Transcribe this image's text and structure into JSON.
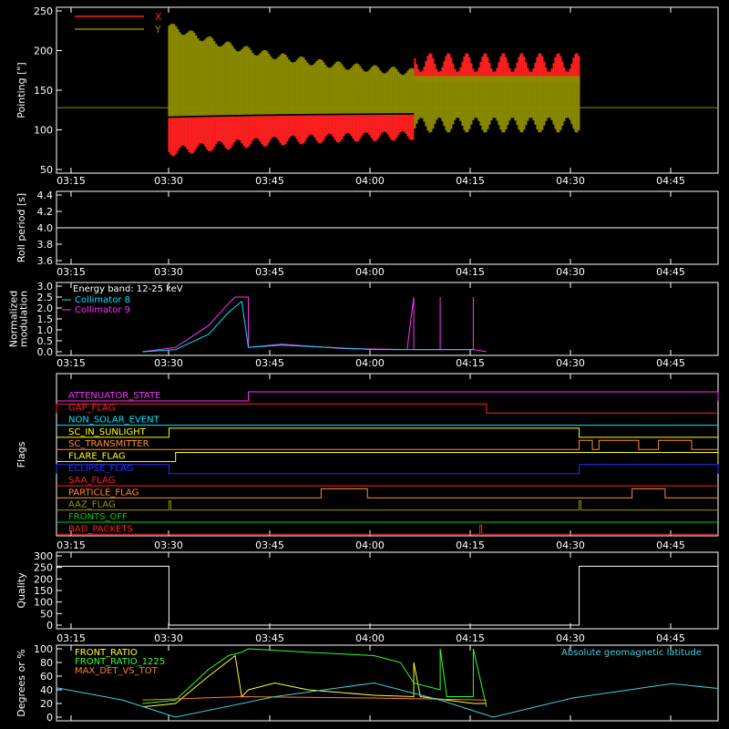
{
  "time_ticks": [
    "03:15",
    "03:30",
    "03:45",
    "04:00",
    "04:15",
    "04:30",
    "04:45"
  ],
  "chart_data": [
    {
      "type": "line",
      "panel": "pointing",
      "ylabel": "Pointing [\"]",
      "ylim": [
        50,
        250
      ],
      "yticks": [
        "50",
        "100",
        "150",
        "200",
        "250"
      ],
      "xlim": [
        "03:12",
        "04:52"
      ],
      "legend": [
        {
          "name": "X",
          "color": "#ff2020"
        },
        {
          "name": "Y",
          "color": "#8b8b00"
        }
      ],
      "series": [
        {
          "name": "X",
          "color": "#ff2020",
          "points": [
            [
              "03:29",
              75
            ],
            [
              "03:30",
              230
            ],
            [
              "03:35",
              105
            ],
            [
              "03:45",
              118
            ],
            [
              "04:00",
              118
            ],
            [
              "04:05",
              190
            ],
            [
              "04:15",
              180
            ],
            [
              "04:25",
              178
            ],
            [
              "04:31",
              175
            ]
          ]
        },
        {
          "name": "Y",
          "color": "#8b8b00",
          "points": [
            [
              "03:29",
              235
            ],
            [
              "03:35",
              200
            ],
            [
              "03:45",
              188
            ],
            [
              "04:00",
              170
            ],
            [
              "04:05",
              100
            ],
            [
              "04:15",
              110
            ],
            [
              "04:31",
              120
            ]
          ]
        }
      ],
      "baseline": 128,
      "band": {
        "x_start": "03:29",
        "x_change": "04:06",
        "x_end": "04:31"
      }
    },
    {
      "type": "line",
      "panel": "roll-period",
      "ylabel": "Roll period [s]",
      "ylim": [
        3.5,
        4.5
      ],
      "yticks": [
        "3.6",
        "3.8",
        "4.0",
        "4.2",
        "4.4"
      ],
      "series": [
        {
          "name": "",
          "color": "#ffffff",
          "points": [
            [
              "03:12",
              4.0
            ],
            [
              "04:52",
              4.0
            ]
          ]
        }
      ]
    },
    {
      "type": "line",
      "panel": "modulation",
      "ylabel": [
        "Normalized",
        "modulation"
      ],
      "ylim": [
        0,
        3.0
      ],
      "yticks": [
        "0.0",
        "0.5",
        "1.0",
        "1.5",
        "2.0",
        "2.5",
        "3.0"
      ],
      "annotation": "Energy band: 12-25 keV",
      "legend": [
        {
          "name": "Collimator 8",
          "color": "#00e5ff"
        },
        {
          "name": "Collimator 9",
          "color": "#ff30ff"
        }
      ],
      "series": [
        {
          "name": "Collimator 9",
          "color": "#ff30ff",
          "points": [
            [
              "03:25",
              0.0
            ],
            [
              "03:30",
              0.2
            ],
            [
              "03:35",
              1.2
            ],
            [
              "03:38",
              2.2
            ],
            [
              "03:39",
              2.5
            ],
            [
              "03:41",
              2.5
            ],
            [
              "03:41",
              0.2
            ],
            [
              "03:46",
              0.35
            ],
            [
              "03:55",
              0.15
            ],
            [
              "04:05",
              0.1
            ],
            [
              "04:06",
              2.5
            ],
            [
              "04:06",
              0.1
            ],
            [
              "04:10",
              0.1
            ],
            [
              "04:10",
              2.5
            ],
            [
              "04:10",
              0.1
            ],
            [
              "04:15",
              0.1
            ],
            [
              "04:15",
              2.5
            ],
            [
              "04:15",
              0.1
            ],
            [
              "04:17",
              0.0
            ]
          ]
        },
        {
          "name": "Collimator 8",
          "color": "#00e5ff",
          "points": [
            [
              "03:25",
              0.0
            ],
            [
              "03:30",
              0.1
            ],
            [
              "03:35",
              0.8
            ],
            [
              "03:38",
              1.8
            ],
            [
              "03:40",
              2.3
            ],
            [
              "03:41",
              0.2
            ],
            [
              "03:46",
              0.3
            ],
            [
              "04:00",
              0.1
            ],
            [
              "04:15",
              0.1
            ]
          ]
        }
      ]
    },
    {
      "type": "line",
      "panel": "flags",
      "ylabel": "Flags",
      "flags": [
        {
          "name": "ATTENUATOR_STATE",
          "color": "#ff30ff",
          "on": [
            [
              "03:41",
              "04:52"
            ]
          ]
        },
        {
          "name": "GAP_FLAG",
          "color": "#ff2020",
          "on": [
            [
              "03:12",
              "04:17"
            ]
          ]
        },
        {
          "name": "NON_SOLAR_EVENT",
          "color": "#00e5ff",
          "on": []
        },
        {
          "name": "SC_IN_SUNLIGHT",
          "color": "#ffff00",
          "on": [
            [
              "03:29",
              "04:31"
            ]
          ]
        },
        {
          "name": "SC_TRANSMITTER",
          "color": "#ff9030",
          "on": [
            [
              "04:31",
              "04:33"
            ],
            [
              "04:34",
              "04:40"
            ],
            [
              "04:43",
              "04:48"
            ]
          ]
        },
        {
          "name": "FLARE_FLAG",
          "color": "#ffff00",
          "on": [
            [
              "03:30",
              "04:52"
            ]
          ]
        },
        {
          "name": "ECLIPSE_FLAG",
          "color": "#2030ff",
          "on": [
            [
              "03:12",
              "03:29"
            ],
            [
              "04:31",
              "04:52"
            ]
          ]
        },
        {
          "name": "SAA_FLAG",
          "color": "#ff2020",
          "on": []
        },
        {
          "name": "PARTICLE_FLAG",
          "color": "#ff9030",
          "on": [
            [
              "03:52",
              "03:59"
            ],
            [
              "04:39",
              "04:44"
            ]
          ]
        },
        {
          "name": "AAZ_FLAG",
          "color": "#9a9a00",
          "on": [
            [
              "03:29",
              "03:29"
            ],
            [
              "04:31",
              "04:31"
            ]
          ]
        },
        {
          "name": "FRONTS_OFF",
          "color": "#00d000",
          "on": []
        },
        {
          "name": "BAD_PACKETS",
          "color": "#ff2020",
          "on": [
            [
              "04:16",
              "04:16"
            ]
          ]
        }
      ]
    },
    {
      "type": "line",
      "panel": "quality",
      "ylabel": "Quality",
      "ylim": [
        0,
        300
      ],
      "yticks": [
        "0",
        "50",
        "100",
        "150",
        "200",
        "250",
        "300"
      ],
      "series": [
        {
          "name": "",
          "color": "#ffffff",
          "points": [
            [
              "03:12",
              255
            ],
            [
              "03:29",
              255
            ],
            [
              "03:29",
              0
            ],
            [
              "04:31",
              0
            ],
            [
              "04:31",
              255
            ],
            [
              "04:52",
              255
            ]
          ]
        }
      ]
    },
    {
      "type": "line",
      "panel": "ratios",
      "ylabel": "Degrees or %",
      "ylim": [
        0,
        100
      ],
      "yticks": [
        "0",
        "20",
        "40",
        "60",
        "80",
        "100"
      ],
      "legend": [
        {
          "name": "FRONT_RATIO",
          "color": "#ffff30"
        },
        {
          "name": "FRONT_RATIO_1225",
          "color": "#30ff30"
        },
        {
          "name": "MAX_DET_VS_TOT",
          "color": "#ff8020"
        }
      ],
      "annotation": "Absolute geomagnetic latitude",
      "series": [
        {
          "name": "FRONT_RATIO",
          "color": "#ffff30",
          "points": [
            [
              "03:25",
              15
            ],
            [
              "03:30",
              20
            ],
            [
              "03:35",
              60
            ],
            [
              "03:39",
              90
            ],
            [
              "03:40",
              30
            ],
            [
              "03:41",
              40
            ],
            [
              "03:45",
              50
            ],
            [
              "03:50",
              40
            ],
            [
              "04:00",
              32
            ],
            [
              "04:06",
              30
            ],
            [
              "04:06",
              80
            ],
            [
              "04:07",
              30
            ],
            [
              "04:15",
              20
            ],
            [
              "04:17",
              20
            ]
          ]
        },
        {
          "name": "FRONT_RATIO_1225",
          "color": "#30ff30",
          "points": [
            [
              "03:25",
              20
            ],
            [
              "03:30",
              25
            ],
            [
              "03:35",
              70
            ],
            [
              "03:38",
              90
            ],
            [
              "03:40",
              95
            ],
            [
              "03:41",
              100
            ],
            [
              "03:50",
              95
            ],
            [
              "04:00",
              90
            ],
            [
              "04:04",
              80
            ],
            [
              "04:06",
              50
            ],
            [
              "04:10",
              40
            ],
            [
              "04:10",
              100
            ],
            [
              "04:11",
              30
            ],
            [
              "04:15",
              30
            ],
            [
              "04:15",
              100
            ],
            [
              "04:17",
              15
            ]
          ]
        },
        {
          "name": "MAX_DET_VS_TOT",
          "color": "#ff8020",
          "points": [
            [
              "03:25",
              25
            ],
            [
              "03:40",
              30
            ],
            [
              "04:00",
              28
            ],
            [
              "04:17",
              25
            ]
          ]
        },
        {
          "name": "Absolute geomagnetic latitude",
          "color": "#40d0e0",
          "points": [
            [
              "03:12",
              43
            ],
            [
              "03:22",
              25
            ],
            [
              "03:30",
              0
            ],
            [
              "03:45",
              30
            ],
            [
              "04:00",
              50
            ],
            [
              "04:10",
              25
            ],
            [
              "04:18",
              0
            ],
            [
              "04:30",
              28
            ],
            [
              "04:45",
              49
            ],
            [
              "04:52",
              42
            ]
          ]
        }
      ]
    }
  ]
}
